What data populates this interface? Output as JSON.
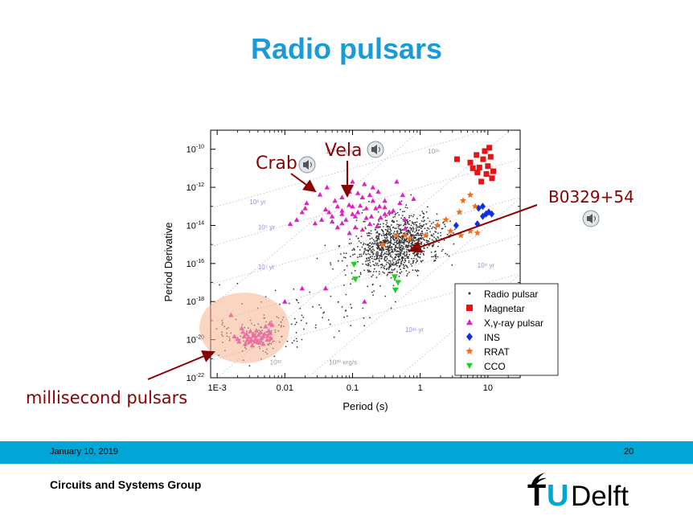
{
  "slide": {
    "title": "Radio pulsars",
    "footer_date": "January 10, 2019",
    "page_number": "20",
    "group": "Circuits and Systems Group",
    "logo": {
      "t": "T",
      "u": "U",
      "rest": "Delft"
    }
  },
  "annotations": {
    "crab": "Crab",
    "vela": "Vela",
    "b0329": "B0329+54",
    "msp": "millisecond pulsars"
  },
  "colors": {
    "title": "#1a9bd7",
    "footer": "#00a6d6",
    "annotation": "#8b0000",
    "radio": "#333333",
    "magnetar": "#ee1111",
    "xray": "#e020c0",
    "ins": "#1030e0",
    "rrat": "#f07020",
    "cco": "#20d020"
  },
  "chart_data": {
    "type": "scatter",
    "xlabel": "Period (s)",
    "ylabel": "Period Derivative",
    "x_scale": "log",
    "y_scale": "log",
    "xlim": [
      0.0008,
      30
    ],
    "ylim": [
      1e-22,
      1e-09
    ],
    "x_ticks": [
      {
        "v": 0.001,
        "label": "1E-3"
      },
      {
        "v": 0.01,
        "label": "0.01"
      },
      {
        "v": 0.1,
        "label": "0.1"
      },
      {
        "v": 1,
        "label": "1"
      },
      {
        "v": 10,
        "label": "10"
      }
    ],
    "y_ticks": [
      {
        "v": 1e-10,
        "b": "10",
        "e": "-10"
      },
      {
        "v": 1e-12,
        "b": "10",
        "e": "-12"
      },
      {
        "v": 1e-14,
        "b": "10",
        "e": "-14"
      },
      {
        "v": 1e-16,
        "b": "10",
        "e": "-16"
      },
      {
        "v": 1e-18,
        "b": "10",
        "e": "-18"
      },
      {
        "v": 1e-20,
        "b": "10",
        "e": "-20"
      },
      {
        "v": 1e-22,
        "b": "10",
        "e": "-22"
      }
    ],
    "age_lines": [
      {
        "label": "10³ yr",
        "x": 0.003,
        "y": 1.3e-13
      },
      {
        "label": "10⁵ yr",
        "x": 0.004,
        "y": 6e-15
      },
      {
        "label": "10⁷ yr",
        "x": 0.004,
        "y": 5e-17
      },
      {
        "label": "10⁹ yr",
        "x": 7,
        "y": 6e-17
      },
      {
        "label": "10¹¹ yr",
        "x": 0.6,
        "y": 2.5e-20
      }
    ],
    "edot_lines": [
      {
        "label": "10⁴⁰ erg/s",
        "x": 0.04,
        "y": 6e-11
      },
      {
        "label": "10³⁶",
        "x": 1.3,
        "y": 6e-11
      },
      {
        "label": "10³²",
        "x": 0.006,
        "y": 5e-22
      },
      {
        "label": "10³⁰ erg/s",
        "x": 0.045,
        "y": 5e-22
      }
    ],
    "legend": {
      "placement": "bottom-right",
      "entries": [
        {
          "name": "Radio pulsar",
          "marker": "dot"
        },
        {
          "name": "Magnetar",
          "marker": "square"
        },
        {
          "name": "X,γ-ray pulsar",
          "marker": "triangle"
        },
        {
          "name": "INS",
          "marker": "diamond"
        },
        {
          "name": "RRAT",
          "marker": "star"
        },
        {
          "name": "CCO",
          "marker": "triangle-down"
        }
      ]
    },
    "series": [
      {
        "name": "Magnetar",
        "points": [
          [
            6.8,
            5e-11
          ],
          [
            8.5,
            3e-11
          ],
          [
            11,
            4e-11
          ],
          [
            9,
            8e-11
          ],
          [
            10.5,
            1.2e-10
          ],
          [
            5.5,
            2e-11
          ],
          [
            7.5,
            1.1e-11
          ],
          [
            10,
            1.3e-11
          ],
          [
            12,
            7e-12
          ],
          [
            9.5,
            5e-12
          ],
          [
            11.5,
            3e-12
          ],
          [
            8,
            2e-12
          ],
          [
            7,
            6e-12
          ],
          [
            6,
            1e-11
          ],
          [
            3.5,
            3e-11
          ]
        ]
      },
      {
        "name": "INS",
        "points": [
          [
            3.4,
            1e-14
          ],
          [
            7,
            1.2e-14
          ],
          [
            8.4,
            3e-14
          ],
          [
            10.3,
            5e-14
          ],
          [
            11.4,
            4e-14
          ],
          [
            8.4,
            1e-13
          ],
          [
            7.3,
            8e-14
          ],
          [
            9.4,
            4e-14
          ]
        ]
      },
      {
        "name": "RRAT",
        "points": [
          [
            5.5,
            4e-13
          ],
          [
            4.3,
            2e-13
          ],
          [
            6.5,
            1e-13
          ],
          [
            3.8,
            5e-14
          ],
          [
            7,
            4e-15
          ],
          [
            5.5,
            5e-15
          ],
          [
            0.6,
            3e-15
          ],
          [
            0.7,
            2e-15
          ],
          [
            0.45,
            3e-15
          ],
          [
            1.2,
            3e-15
          ],
          [
            2.4,
            2e-14
          ],
          [
            1.8,
            1e-14
          ],
          [
            2.8,
            5e-15
          ],
          [
            4,
            3e-15
          ],
          [
            0.28,
            1e-15
          ]
        ]
      },
      {
        "name": "CCO",
        "points": [
          [
            0.105,
            9e-17
          ],
          [
            0.11,
            1.5e-17
          ],
          [
            0.42,
            2e-17
          ],
          [
            0.43,
            4e-18
          ],
          [
            0.47,
            1e-17
          ]
        ]
      },
      {
        "name": "X,γ-ray pulsar",
        "points": [
          [
            0.033,
            4.2e-13
          ],
          [
            0.089,
            1.2e-13
          ],
          [
            0.15,
            1.5e-12
          ],
          [
            0.055,
            2e-13
          ],
          [
            0.07,
            6e-14
          ],
          [
            0.1,
            1e-13
          ],
          [
            0.12,
            5e-14
          ],
          [
            0.16,
            8e-14
          ],
          [
            0.2,
            2e-13
          ],
          [
            0.25,
            1e-13
          ],
          [
            0.3,
            4e-14
          ],
          [
            0.4,
            6e-14
          ],
          [
            0.11,
            3e-14
          ],
          [
            0.08,
            2e-14
          ],
          [
            0.06,
            8e-15
          ],
          [
            0.18,
            1.2e-14
          ],
          [
            0.23,
            9e-15
          ],
          [
            0.14,
            6e-15
          ],
          [
            0.09,
            4e-15
          ],
          [
            0.07,
            1.3e-14
          ],
          [
            0.05,
            1.6e-14
          ],
          [
            0.045,
            5e-14
          ],
          [
            0.035,
            2e-14
          ],
          [
            0.028,
            1.3e-14
          ],
          [
            0.04,
            7e-14
          ],
          [
            0.3,
            2e-13
          ],
          [
            0.5,
            1.5e-13
          ],
          [
            0.6,
            2e-14
          ],
          [
            0.012,
            1.2e-14
          ],
          [
            0.015,
            2e-14
          ],
          [
            0.02,
            8e-14
          ],
          [
            0.018,
            5e-14
          ],
          [
            0.07,
            3e-13
          ],
          [
            0.09,
            6e-13
          ],
          [
            0.12,
            5e-13
          ],
          [
            0.18,
            4e-13
          ],
          [
            0.45,
            2e-12
          ],
          [
            0.3,
            9e-14
          ],
          [
            0.14,
            3e-13
          ],
          [
            0.22,
            8e-14
          ],
          [
            0.55,
            4e-13
          ],
          [
            0.8,
            2.5e-13
          ],
          [
            0.16,
            2.5e-14
          ],
          [
            0.1,
            4e-14
          ],
          [
            0.06,
            1e-13
          ],
          [
            0.26,
            2.6e-14
          ],
          [
            0.19,
            3e-14
          ],
          [
            0.13,
            1.1e-13
          ],
          [
            0.07,
            4e-14
          ],
          [
            0.05,
            3e-14
          ],
          [
            0.11,
            8e-15
          ],
          [
            0.35,
            5e-14
          ],
          [
            0.042,
            1e-12
          ],
          [
            0.2,
            1e-12
          ],
          [
            0.1,
            2e-12
          ],
          [
            0.24,
            6e-13
          ],
          [
            0.021,
            1.5e-13
          ],
          [
            0.6,
            7e-15
          ],
          [
            0.04,
            5e-18
          ],
          [
            0.15,
            1e-18
          ],
          [
            1.0,
            5e-16
          ],
          [
            0.0023,
            4e-20
          ],
          [
            0.0025,
            1.5e-20
          ],
          [
            0.003,
            8e-21
          ],
          [
            0.0027,
            2e-20
          ],
          [
            0.0032,
            1e-20
          ],
          [
            0.0035,
            1.8e-20
          ],
          [
            0.004,
            9e-21
          ],
          [
            0.0045,
            1.2e-20
          ],
          [
            0.005,
            2e-20
          ],
          [
            0.0042,
            7e-21
          ],
          [
            0.0038,
            3e-20
          ],
          [
            0.0048,
            1.5e-20
          ],
          [
            0.0055,
            1e-20
          ],
          [
            0.006,
            2.2e-20
          ],
          [
            0.0052,
            5e-20
          ],
          [
            0.0033,
            5e-21
          ],
          [
            0.0029,
            1.4e-20
          ],
          [
            0.0021,
            8e-21
          ],
          [
            0.0018,
            1.5e-20
          ],
          [
            0.0016,
            2e-19
          ],
          [
            0.0062,
            1.2e-20
          ],
          [
            0.0058,
            3e-20
          ],
          [
            0.0065,
            6e-20
          ],
          [
            0.0044,
            2.4e-20
          ],
          [
            0.0037,
            1.1e-20
          ],
          [
            0.0031,
            2.8e-20
          ],
          [
            0.0026,
            6e-21
          ],
          [
            0.0048,
            6e-21
          ],
          [
            0.0056,
            1.6e-20
          ],
          [
            0.0041,
            1.8e-20
          ],
          [
            0.0036,
            8e-21
          ],
          [
            0.0028,
            1e-20
          ],
          [
            0.0024,
            2.6e-20
          ],
          [
            0.002,
            1.1e-20
          ],
          [
            0.0034,
            1.6e-20
          ],
          [
            0.006,
            7e-20
          ],
          [
            0.01,
            1e-18
          ],
          [
            0.018,
            5e-18
          ]
        ]
      }
    ]
  }
}
